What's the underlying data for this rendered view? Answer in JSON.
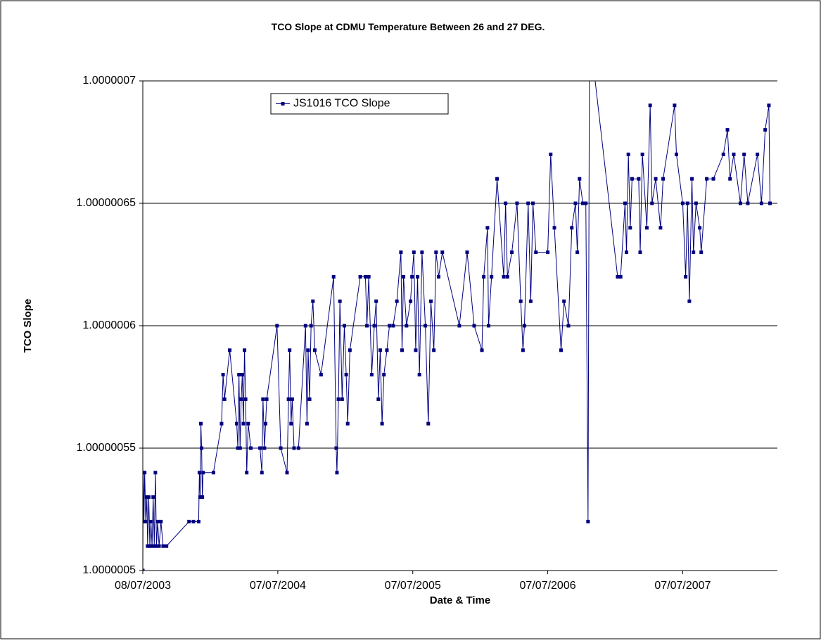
{
  "chart_data": {
    "type": "line",
    "title": "TCO Slope at CDMU Temperature Between 26 and 27 DEG.",
    "x_label": "Date & Time",
    "y_label": "TCO Slope",
    "x": [
      "08/07/2003",
      "09/07/2003",
      "11/07/2003",
      "13/07/2003",
      "16/07/2003",
      "19/07/2003",
      "21/07/2003",
      "24/07/2003",
      "27/07/2003",
      "30/07/2003",
      "02/08/2003",
      "05/08/2003",
      "08/08/2003",
      "11/08/2003",
      "14/08/2003",
      "17/08/2003",
      "21/08/2003",
      "26/08/2003",
      "01/09/2003",
      "10/09/2003",
      "10/11/2003",
      "22/11/2003",
      "06/12/2003",
      "08/12/2003",
      "10/12/2003",
      "12/12/2003",
      "14/12/2003",
      "16/12/2003",
      "18/12/2003",
      "15/01/2004",
      "06/02/2004",
      "10/02/2004",
      "14/02/2004",
      "28/02/2004",
      "18/03/2004",
      "21/03/2004",
      "24/03/2004",
      "27/03/2004",
      "30/03/2004",
      "02/04/2004",
      "05/04/2004",
      "08/04/2004",
      "11/04/2004",
      "14/04/2004",
      "18/04/2004",
      "25/04/2004",
      "20/05/2004",
      "25/05/2004",
      "28/05/2004",
      "01/06/2004",
      "04/06/2004",
      "07/06/2004",
      "05/07/2004",
      "15/07/2004",
      "01/08/2004",
      "05/08/2004",
      "08/08/2004",
      "12/08/2004",
      "15/08/2004",
      "20/08/2004",
      "01/09/2004",
      "20/09/2004",
      "24/09/2004",
      "27/09/2004",
      "01/10/2004",
      "05/10/2004",
      "10/10/2004",
      "15/10/2004",
      "01/11/2004",
      "05/12/2004",
      "12/12/2004",
      "14/12/2004",
      "18/12/2004",
      "22/12/2004",
      "28/12/2004",
      "03/01/2005",
      "08/01/2005",
      "12/01/2005",
      "18/01/2005",
      "15/02/2005",
      "01/03/2005",
      "05/03/2005",
      "10/03/2005",
      "18/03/2005",
      "25/03/2005",
      "30/03/2005",
      "05/04/2005",
      "10/04/2005",
      "15/04/2005",
      "20/04/2005",
      "28/04/2005",
      "05/05/2005",
      "15/05/2005",
      "25/05/2005",
      "05/06/2005",
      "08/06/2005",
      "12/06/2005",
      "20/06/2005",
      "01/07/2005",
      "05/07/2005",
      "10/07/2005",
      "15/07/2005",
      "20/07/2005",
      "25/07/2005",
      "01/08/2005",
      "10/08/2005",
      "18/08/2005",
      "25/08/2005",
      "02/09/2005",
      "08/09/2005",
      "15/09/2005",
      "25/09/2005",
      "10/11/2005",
      "01/12/2005",
      "20/12/2005",
      "10/01/2006",
      "15/01/2006",
      "25/01/2006",
      "28/01/2006",
      "05/02/2006",
      "20/02/2006",
      "10/03/2006",
      "15/03/2006",
      "20/03/2006",
      "01/04/2006",
      "15/04/2006",
      "25/04/2006",
      "01/05/2006",
      "05/05/2006",
      "15/05/2006",
      "22/05/2006",
      "28/05/2006",
      "05/06/2006",
      "07/07/2006",
      "15/07/2006",
      "25/07/2006",
      "12/08/2006",
      "20/08/2006",
      "01/09/2006",
      "10/09/2006",
      "20/09/2006",
      "25/09/2006",
      "01/10/2006",
      "10/10/2006",
      "18/10/2006",
      "24/10/2006",
      "28/10/2006",
      "12/01/2007",
      "20/01/2007",
      "01/02/2007",
      "05/02/2007",
      "10/02/2007",
      "15/02/2007",
      "20/02/2007",
      "10/03/2007",
      "14/03/2007",
      "20/03/2007",
      "01/04/2007",
      "10/04/2007",
      "15/04/2007",
      "25/04/2007",
      "08/05/2007",
      "15/05/2007",
      "15/06/2007",
      "20/06/2007",
      "07/07/2007",
      "15/07/2007",
      "20/07/2007",
      "25/07/2007",
      "01/08/2007",
      "05/08/2007",
      "12/08/2007",
      "22/08/2007",
      "26/08/2007",
      "10/09/2007",
      "28/09/2007",
      "25/10/2007",
      "05/11/2007",
      "12/11/2007",
      "22/11/2007",
      "10/12/2007",
      "20/12/2007",
      "30/12/2007",
      "25/01/2008",
      "05/02/2008",
      "15/02/2008",
      "25/02/2008",
      "28/02/2008"
    ],
    "series": [
      {
        "name": "JS1016 TCO Slope",
        "color": "#000080",
        "values": [
          1.0000005,
          1.00000054,
          1.00000052,
          1.00000054,
          1.00000052,
          1.00000053,
          1.00000051,
          1.00000053,
          1.00000051,
          1.00000052,
          1.00000051,
          1.00000053,
          1.00000051,
          1.00000054,
          1.00000051,
          1.00000052,
          1.00000051,
          1.00000052,
          1.00000051,
          1.00000051,
          1.00000052,
          1.00000052,
          1.00000052,
          1.00000054,
          1.00000053,
          1.00000056,
          1.00000055,
          1.00000053,
          1.00000054,
          1.00000054,
          1.00000056,
          1.00000058,
          1.00000057,
          1.00000059,
          1.00000056,
          1.00000055,
          1.00000058,
          1.00000055,
          1.00000057,
          1.00000058,
          1.00000056,
          1.00000059,
          1.00000057,
          1.00000054,
          1.00000056,
          1.00000055,
          1.00000055,
          1.00000054,
          1.00000057,
          1.00000055,
          1.00000056,
          1.00000057,
          1.0000006,
          1.00000055,
          1.00000054,
          1.00000057,
          1.00000059,
          1.00000056,
          1.00000057,
          1.00000055,
          1.00000055,
          1.0000006,
          1.00000056,
          1.00000059,
          1.00000057,
          1.0000006,
          1.00000061,
          1.00000059,
          1.00000058,
          1.00000062,
          1.00000055,
          1.00000054,
          1.00000057,
          1.00000061,
          1.00000057,
          1.0000006,
          1.00000058,
          1.00000056,
          1.00000059,
          1.00000062,
          1.00000062,
          1.0000006,
          1.00000062,
          1.00000058,
          1.0000006,
          1.00000061,
          1.00000057,
          1.00000059,
          1.00000056,
          1.00000058,
          1.00000059,
          1.0000006,
          1.0000006,
          1.00000061,
          1.00000063,
          1.00000059,
          1.00000062,
          1.0000006,
          1.00000061,
          1.00000062,
          1.00000063,
          1.00000059,
          1.00000062,
          1.00000058,
          1.00000063,
          1.0000006,
          1.00000056,
          1.00000061,
          1.00000059,
          1.00000063,
          1.00000062,
          1.00000063,
          1.0000006,
          1.00000063,
          1.0000006,
          1.00000059,
          1.00000062,
          1.00000064,
          1.0000006,
          1.00000062,
          1.00000066,
          1.00000062,
          1.00000065,
          1.00000062,
          1.00000063,
          1.00000065,
          1.00000061,
          1.00000059,
          1.0000006,
          1.00000065,
          1.00000061,
          1.00000065,
          1.00000063,
          1.00000063,
          1.00000067,
          1.00000064,
          1.00000059,
          1.00000061,
          1.0000006,
          1.00000064,
          1.00000065,
          1.00000063,
          1.00000066,
          1.00000065,
          1.00000065,
          1.00000052,
          1.00000072,
          1.00000062,
          1.00000062,
          1.00000065,
          1.00000063,
          1.00000067,
          1.00000064,
          1.00000066,
          1.00000066,
          1.00000063,
          1.00000067,
          1.00000064,
          1.00000069,
          1.00000065,
          1.00000066,
          1.00000064,
          1.00000066,
          1.00000069,
          1.00000067,
          1.00000065,
          1.00000062,
          1.00000065,
          1.00000061,
          1.00000066,
          1.00000063,
          1.00000065,
          1.00000064,
          1.00000063,
          1.00000066,
          1.00000066,
          1.00000067,
          1.00000068,
          1.00000066,
          1.00000067,
          1.00000065,
          1.00000067,
          1.00000065,
          1.00000067,
          1.00000065,
          1.00000068,
          1.00000069,
          1.00000065
        ]
      }
    ],
    "xlim": [
      "08/07/2003",
      "19/03/2008"
    ],
    "xticks": [
      "08/07/2003",
      "07/07/2004",
      "07/07/2005",
      "07/07/2006",
      "07/07/2007"
    ],
    "ylim": [
      1.0000005,
      1.0000007
    ],
    "yticks": [
      1.0000005,
      1.00000055,
      1.0000006,
      1.00000065,
      1.0000007
    ],
    "grid": true,
    "legend_position": "upper left"
  }
}
